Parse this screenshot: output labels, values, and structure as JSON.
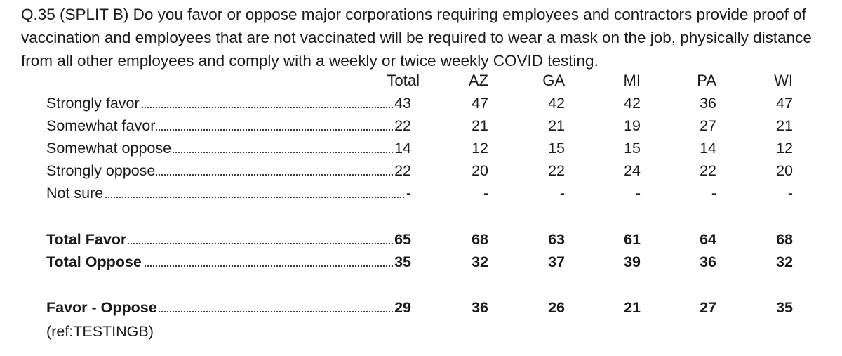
{
  "question": "Q.35 (SPLIT B) Do you favor or oppose major corporations requiring employees and contractors provide proof of vaccination and employees that are not vaccinated will be required to wear a mask on the job, physically distance from all other employees and comply with a weekly or twice weekly COVID testing.",
  "headers": [
    "Total",
    "AZ",
    "GA",
    "MI",
    "PA",
    "WI"
  ],
  "rows": [
    {
      "label": "Strongly favor",
      "total": "43",
      "values": [
        "47",
        "42",
        "42",
        "36",
        "47"
      ]
    },
    {
      "label": "Somewhat favor",
      "total": "22",
      "values": [
        "21",
        "21",
        "19",
        "27",
        "21"
      ]
    },
    {
      "label": "Somewhat oppose",
      "total": "14",
      "values": [
        "12",
        "15",
        "15",
        "14",
        "12"
      ]
    },
    {
      "label": "Strongly oppose",
      "total": "22",
      "values": [
        "20",
        "22",
        "24",
        "22",
        "20"
      ]
    },
    {
      "label": "Not sure",
      "total": "-",
      "values": [
        "-",
        "-",
        "-",
        "-",
        "-"
      ]
    }
  ],
  "summary": [
    {
      "label": "Total Favor",
      "total": "65",
      "values": [
        "68",
        "63",
        "61",
        "64",
        "68"
      ]
    },
    {
      "label": "Total Oppose",
      "total": "35",
      "values": [
        "32",
        "37",
        "39",
        "36",
        "32"
      ]
    }
  ],
  "net": {
    "label": "Favor - Oppose",
    "total": "29",
    "values": [
      "36",
      "26",
      "21",
      "27",
      "35"
    ]
  },
  "ref": "(ref:TESTINGB)"
}
